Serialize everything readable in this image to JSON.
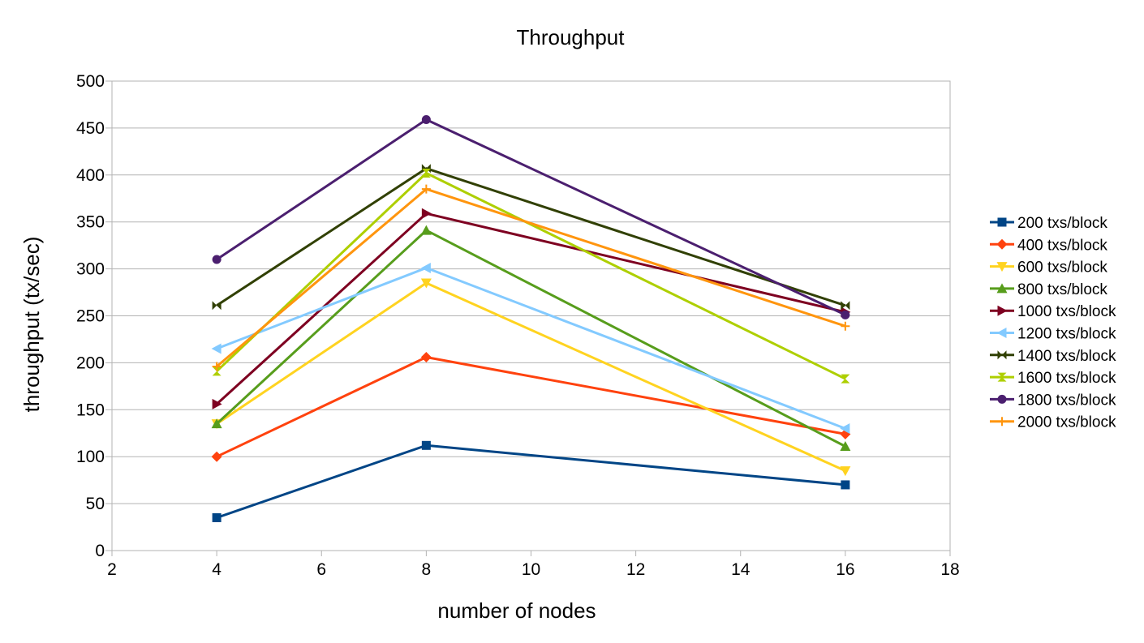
{
  "chart_data": {
    "type": "line",
    "title": "Throughput",
    "xlabel": "number of nodes",
    "ylabel": "throughput (tx/sec)",
    "xlim": [
      2,
      18
    ],
    "ylim": [
      0,
      500
    ],
    "x_ticks": [
      2,
      4,
      6,
      8,
      10,
      12,
      14,
      16,
      18
    ],
    "y_ticks": [
      0,
      50,
      100,
      150,
      200,
      250,
      300,
      350,
      400,
      450,
      500
    ],
    "grid": "horizontal",
    "legend": "right",
    "x": [
      4,
      8,
      16
    ],
    "series": [
      {
        "name": "200 txs/block",
        "values": [
          35,
          112,
          70
        ],
        "color": "#004586",
        "marker": "square"
      },
      {
        "name": "400 txs/block",
        "values": [
          100,
          206,
          124
        ],
        "color": "#ff420e",
        "marker": "diamond"
      },
      {
        "name": "600 txs/block",
        "values": [
          135,
          285,
          85
        ],
        "color": "#ffd320",
        "marker": "triangle-down"
      },
      {
        "name": "800 txs/block",
        "values": [
          135,
          341,
          111
        ],
        "color": "#579d1c",
        "marker": "triangle-up"
      },
      {
        "name": "1000 txs/block",
        "values": [
          156,
          359,
          254
        ],
        "color": "#7e0021",
        "marker": "triangle-right"
      },
      {
        "name": "1200 txs/block",
        "values": [
          215,
          301,
          130
        ],
        "color": "#83caff",
        "marker": "triangle-left"
      },
      {
        "name": "1400 txs/block",
        "values": [
          261,
          407,
          261
        ],
        "color": "#314004",
        "marker": "bowtie"
      },
      {
        "name": "1600 txs/block",
        "values": [
          191,
          402,
          183
        ],
        "color": "#aecf00",
        "marker": "hourglass"
      },
      {
        "name": "1800 txs/block",
        "values": [
          310,
          459,
          251
        ],
        "color": "#4b1f6f",
        "marker": "circle"
      },
      {
        "name": "2000 txs/block",
        "values": [
          196,
          385,
          239
        ],
        "color": "#ff950e",
        "marker": "plus"
      }
    ]
  }
}
